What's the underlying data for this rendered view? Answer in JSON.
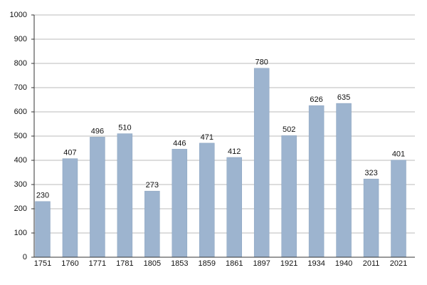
{
  "chart_data": {
    "type": "bar",
    "categories": [
      "1751",
      "1760",
      "1771",
      "1781",
      "1805",
      "1853",
      "1859",
      "1861",
      "1897",
      "1921",
      "1934",
      "1940",
      "2011",
      "2021"
    ],
    "values": [
      230,
      407,
      496,
      510,
      273,
      446,
      471,
      412,
      780,
      502,
      626,
      635,
      323,
      401
    ],
    "color": "#9db4cf",
    "ylim": [
      0,
      1000
    ],
    "yticks": [
      0,
      100,
      200,
      300,
      400,
      500,
      600,
      700,
      800,
      900,
      1000
    ],
    "grid": true
  }
}
